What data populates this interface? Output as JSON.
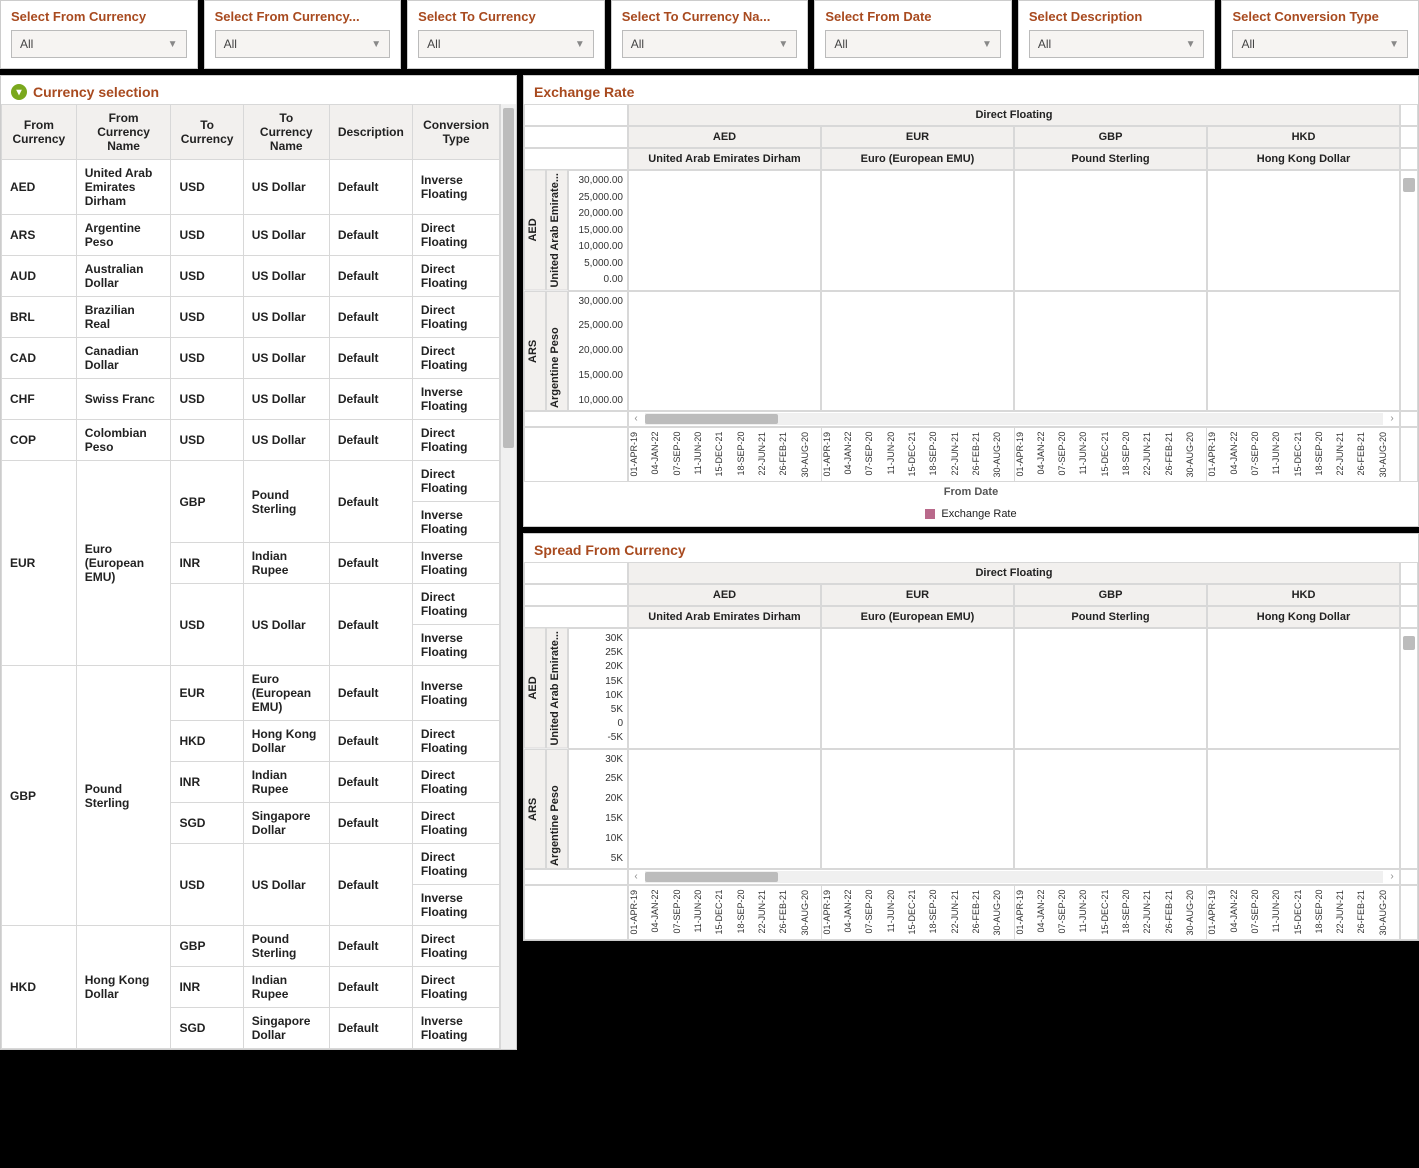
{
  "colors": {
    "accent": "#a84a1f",
    "filter_icon_bg": "#7aa81d",
    "legend_swatch": "#b9698b",
    "header_bg": "#f2f0ee",
    "border": "#d8d8d8",
    "scroll_thumb": "#bcbcbc"
  },
  "filters": [
    {
      "title": "Select From Currency",
      "value": "All"
    },
    {
      "title": "Select From Currency...",
      "value": "All"
    },
    {
      "title": "Select To Currency",
      "value": "All"
    },
    {
      "title": "Select To Currency Na...",
      "value": "All"
    },
    {
      "title": "Select From Date",
      "value": "All"
    },
    {
      "title": "Select Description",
      "value": "All"
    },
    {
      "title": "Select Conversion Type",
      "value": "All"
    }
  ],
  "currency_table": {
    "title": "Currency selection",
    "columns": [
      "From Currency",
      "From Currency Name",
      "To Currency",
      "To Currency Name",
      "Description",
      "Conversion Type"
    ],
    "rows": [
      {
        "fc": "AED",
        "fcn": "United Arab Emirates Dirham",
        "subs": [
          {
            "tc": "USD",
            "tcn": "US Dollar",
            "d": "Default",
            "ct": [
              "Inverse Floating"
            ]
          }
        ]
      },
      {
        "fc": "ARS",
        "fcn": "Argentine Peso",
        "subs": [
          {
            "tc": "USD",
            "tcn": "US Dollar",
            "d": "Default",
            "ct": [
              "Direct Floating"
            ]
          }
        ]
      },
      {
        "fc": "AUD",
        "fcn": "Australian Dollar",
        "subs": [
          {
            "tc": "USD",
            "tcn": "US Dollar",
            "d": "Default",
            "ct": [
              "Direct Floating"
            ]
          }
        ]
      },
      {
        "fc": "BRL",
        "fcn": "Brazilian Real",
        "subs": [
          {
            "tc": "USD",
            "tcn": "US Dollar",
            "d": "Default",
            "ct": [
              "Direct Floating"
            ]
          }
        ]
      },
      {
        "fc": "CAD",
        "fcn": "Canadian Dollar",
        "subs": [
          {
            "tc": "USD",
            "tcn": "US Dollar",
            "d": "Default",
            "ct": [
              "Direct Floating"
            ]
          }
        ]
      },
      {
        "fc": "CHF",
        "fcn": "Swiss Franc",
        "subs": [
          {
            "tc": "USD",
            "tcn": "US Dollar",
            "d": "Default",
            "ct": [
              "Inverse Floating"
            ]
          }
        ]
      },
      {
        "fc": "COP",
        "fcn": "Colombian Peso",
        "subs": [
          {
            "tc": "USD",
            "tcn": "US Dollar",
            "d": "Default",
            "ct": [
              "Direct Floating"
            ]
          }
        ]
      },
      {
        "fc": "EUR",
        "fcn": "Euro (European EMU)",
        "subs": [
          {
            "tc": "GBP",
            "tcn": "Pound Sterling",
            "d": "Default",
            "ct": [
              "Direct Floating",
              "Inverse Floating"
            ]
          },
          {
            "tc": "INR",
            "tcn": "Indian Rupee",
            "d": "Default",
            "ct": [
              "Inverse Floating"
            ]
          },
          {
            "tc": "USD",
            "tcn": "US Dollar",
            "d": "Default",
            "ct": [
              "Direct Floating",
              "Inverse Floating"
            ]
          }
        ]
      },
      {
        "fc": "GBP",
        "fcn": "Pound Sterling",
        "subs": [
          {
            "tc": "EUR",
            "tcn": "Euro (European EMU)",
            "d": "Default",
            "ct": [
              "Inverse Floating"
            ]
          },
          {
            "tc": "HKD",
            "tcn": "Hong Kong Dollar",
            "d": "Default",
            "ct": [
              "Direct Floating"
            ]
          },
          {
            "tc": "INR",
            "tcn": "Indian Rupee",
            "d": "Default",
            "ct": [
              "Direct Floating"
            ]
          },
          {
            "tc": "SGD",
            "tcn": "Singapore Dollar",
            "d": "Default",
            "ct": [
              "Direct Floating"
            ]
          },
          {
            "tc": "USD",
            "tcn": "US Dollar",
            "d": "Default",
            "ct": [
              "Direct Floating",
              "Inverse Floating"
            ]
          }
        ]
      },
      {
        "fc": "HKD",
        "fcn": "Hong Kong Dollar",
        "subs": [
          {
            "tc": "GBP",
            "tcn": "Pound Sterling",
            "d": "Default",
            "ct": [
              "Direct Floating"
            ]
          },
          {
            "tc": "INR",
            "tcn": "Indian Rupee",
            "d": "Default",
            "ct": [
              "Direct Floating"
            ]
          },
          {
            "tc": "SGD",
            "tcn": "Singapore Dollar",
            "d": "Default",
            "ct": [
              "Inverse Floating"
            ]
          }
        ]
      }
    ]
  },
  "chart_columns": {
    "group_label": "Direct Floating",
    "codes": [
      "AED",
      "EUR",
      "GBP",
      "HKD"
    ],
    "names": [
      "United Arab Emirates Dirham",
      "Euro (European EMU)",
      "Pound Sterling",
      "Hong Kong Dollar"
    ]
  },
  "x_dates": [
    "01-APR-19",
    "04-JAN-22",
    "07-SEP-20",
    "11-JUN-20",
    "15-DEC-21",
    "18-SEP-20",
    "22-JUN-21",
    "26-FEB-21",
    "30-AUG-20"
  ],
  "exchange_panel": {
    "title": "Exchange Rate",
    "axis_title": "From Date",
    "legend": "Exchange Rate",
    "rows": [
      {
        "code": "AED",
        "name": "United Arab Emirate...",
        "sub": "Exchange Rate",
        "yticks": [
          "30,000.00",
          "25,000.00",
          "20,000.00",
          "15,000.00",
          "10,000.00",
          "5,000.00",
          "0.00"
        ]
      },
      {
        "code": "ARS",
        "name": "Argentine Peso",
        "sub": "Exchange Rate",
        "yticks": [
          "30,000.00",
          "25,000.00",
          "20,000.00",
          "15,000.00",
          "10,000.00"
        ]
      }
    ],
    "hscroll": {
      "left_pct": 0,
      "width_pct": 18
    },
    "vscroll": {
      "top_pct": 3,
      "height_pct": 6
    }
  },
  "spread_panel": {
    "title": "Spread From Currency",
    "rows": [
      {
        "code": "AED",
        "name": "United Arab Emirate...",
        "sub": "Spread From Currency",
        "yticks": [
          "30K",
          "25K",
          "20K",
          "15K",
          "10K",
          "5K",
          "0",
          "-5K"
        ]
      },
      {
        "code": "ARS",
        "name": "Argentine Peso",
        "sub": "ad From Currency",
        "yticks": [
          "30K",
          "25K",
          "20K",
          "15K",
          "10K",
          "5K"
        ]
      }
    ],
    "hscroll": {
      "left_pct": 0,
      "width_pct": 18
    },
    "vscroll": {
      "top_pct": 3,
      "height_pct": 6
    },
    "x_dates_partial": [
      "-APR-19",
      "-JAN-22",
      "-SEP-20",
      "-JUN-20",
      "-DEC-21",
      "-SEP-20",
      "-JUN-21",
      "-FEB-21",
      "-AUG-20",
      "-APR-19",
      "-JAN-22",
      "-SEP-20",
      "-JUN-20",
      "-DEC-21",
      "-SEP-20",
      "-JUN-21",
      "-FEB-21",
      "-AUG-20",
      "-APR-19",
      "-JAN-22",
      "-SEP-20",
      "-JUN-20",
      "-DEC-21",
      "-SEP-20",
      "-JUN-21",
      "-FEB-21",
      "-AUG-20",
      "-APR-19",
      "-JAN-22",
      "-SEP-20",
      "-JUN-20",
      "-DEC-21",
      "-SEP-20",
      "-JUN-21",
      "-FEB-21",
      "-AUG-20",
      "-APR-19"
    ]
  }
}
